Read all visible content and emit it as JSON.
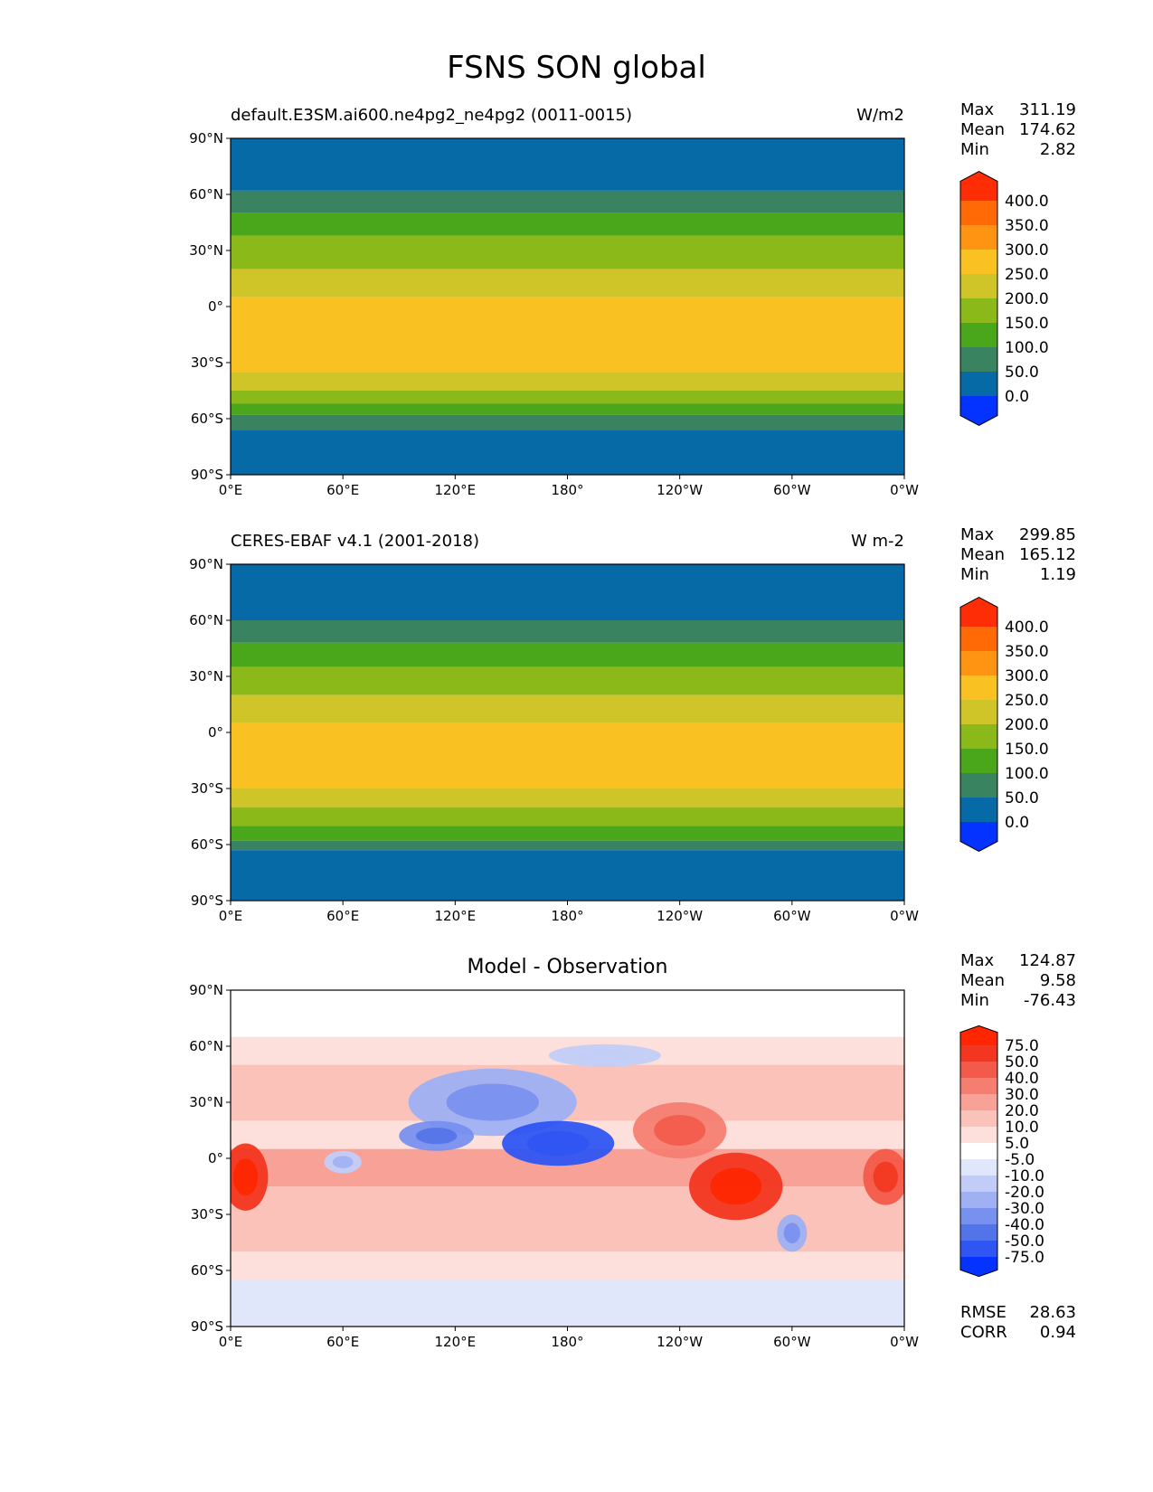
{
  "figure_title": "FSNS SON global",
  "chart_data": [
    {
      "type": "heatmap",
      "name": "test",
      "title_left": "default.E3SM.ai600.ne4pg2_ne4pg2 (0011-0015)",
      "title_right": "W/m2",
      "title_center": "",
      "stats": {
        "max_label": "Max",
        "max": "311.19",
        "mean_label": "Mean",
        "mean": "174.62",
        "min_label": "Min",
        "min": "2.82"
      },
      "xlabel": "",
      "ylabel": "",
      "x_ticks": [
        "0°E",
        "60°E",
        "120°E",
        "180°",
        "120°W",
        "60°W",
        "0°W"
      ],
      "y_ticks": [
        "90°N",
        "60°N",
        "30°N",
        "0°",
        "30°S",
        "60°S",
        "90°S"
      ],
      "xlim": [
        0,
        360
      ],
      "ylim": [
        -90,
        90
      ],
      "colorbar": {
        "levels": [
          "0.0",
          "50.0",
          "100.0",
          "150.0",
          "200.0",
          "250.0",
          "300.0",
          "350.0",
          "400.0"
        ],
        "colors": [
          "#0433ff",
          "#056aa5",
          "#3a8360",
          "#4aa61a",
          "#8cb91a",
          "#cfc428",
          "#f9c222",
          "#ff9412",
          "#ff6a07",
          "#ff2d05"
        ]
      },
      "bands": [
        {
          "lat_from": 90,
          "lat_to": 62,
          "value": 25
        },
        {
          "lat_from": 62,
          "lat_to": 50,
          "value": 75
        },
        {
          "lat_from": 50,
          "lat_to": 38,
          "value": 125
        },
        {
          "lat_from": 38,
          "lat_to": 20,
          "value": 175
        },
        {
          "lat_from": 20,
          "lat_to": 5,
          "value": 225
        },
        {
          "lat_from": 5,
          "lat_to": -35,
          "value": 275
        },
        {
          "lat_from": -35,
          "lat_to": -45,
          "value": 225
        },
        {
          "lat_from": -45,
          "lat_to": -52,
          "value": 175
        },
        {
          "lat_from": -52,
          "lat_to": -58,
          "value": 125
        },
        {
          "lat_from": -58,
          "lat_to": -66,
          "value": 75
        },
        {
          "lat_from": -66,
          "lat_to": -90,
          "value": 25
        }
      ]
    },
    {
      "type": "heatmap",
      "name": "reference",
      "title_left": "CERES-EBAF v4.1 (2001-2018)",
      "title_right": "W m-2",
      "title_center": "",
      "stats": {
        "max_label": "Max",
        "max": "299.85",
        "mean_label": "Mean",
        "mean": "165.12",
        "min_label": "Min",
        "min": "1.19"
      },
      "xlabel": "",
      "ylabel": "",
      "x_ticks": [
        "0°E",
        "60°E",
        "120°E",
        "180°",
        "120°W",
        "60°W",
        "0°W"
      ],
      "y_ticks": [
        "90°N",
        "60°N",
        "30°N",
        "0°",
        "30°S",
        "60°S",
        "90°S"
      ],
      "xlim": [
        0,
        360
      ],
      "ylim": [
        -90,
        90
      ],
      "colorbar": {
        "levels": [
          "0.0",
          "50.0",
          "100.0",
          "150.0",
          "200.0",
          "250.0",
          "300.0",
          "350.0",
          "400.0"
        ],
        "colors": [
          "#0433ff",
          "#056aa5",
          "#3a8360",
          "#4aa61a",
          "#8cb91a",
          "#cfc428",
          "#f9c222",
          "#ff9412",
          "#ff6a07",
          "#ff2d05"
        ]
      },
      "bands": [
        {
          "lat_from": 90,
          "lat_to": 60,
          "value": 25
        },
        {
          "lat_from": 60,
          "lat_to": 48,
          "value": 75
        },
        {
          "lat_from": 48,
          "lat_to": 35,
          "value": 125
        },
        {
          "lat_from": 35,
          "lat_to": 20,
          "value": 175
        },
        {
          "lat_from": 20,
          "lat_to": 5,
          "value": 225
        },
        {
          "lat_from": 5,
          "lat_to": -30,
          "value": 250
        },
        {
          "lat_from": -30,
          "lat_to": -40,
          "value": 225
        },
        {
          "lat_from": -40,
          "lat_to": -50,
          "value": 175
        },
        {
          "lat_from": -50,
          "lat_to": -58,
          "value": 125
        },
        {
          "lat_from": -58,
          "lat_to": -63,
          "value": 75
        },
        {
          "lat_from": -63,
          "lat_to": -90,
          "value": 25
        }
      ]
    },
    {
      "type": "heatmap",
      "name": "difference",
      "title_left": "",
      "title_right": "",
      "title_center": "Model - Observation",
      "stats": {
        "max_label": "Max",
        "max": "124.87",
        "mean_label": "Mean",
        "mean": "9.58",
        "min_label": "Min",
        "min": "-76.43"
      },
      "extra_stats": {
        "rmse_label": "RMSE",
        "rmse": "28.63",
        "corr_label": "CORR",
        "corr": "0.94"
      },
      "xlabel": "",
      "ylabel": "",
      "x_ticks": [
        "0°E",
        "60°E",
        "120°E",
        "180°",
        "120°W",
        "60°W",
        "0°W"
      ],
      "y_ticks": [
        "90°N",
        "60°N",
        "30°N",
        "0°",
        "30°S",
        "60°S",
        "90°S"
      ],
      "xlim": [
        0,
        360
      ],
      "ylim": [
        -90,
        90
      ],
      "colorbar": {
        "levels": [
          "-75.0",
          "-50.0",
          "-40.0",
          "-30.0",
          "-20.0",
          "-10.0",
          "-5.0",
          "5.0",
          "10.0",
          "20.0",
          "30.0",
          "40.0",
          "50.0",
          "75.0"
        ],
        "colors": [
          "#0433ff",
          "#2f55f2",
          "#5373e8",
          "#7890ee",
          "#9fb0f3",
          "#c2cdf7",
          "#e1e7fb",
          "#ffffff",
          "#fde0dc",
          "#fbc2ba",
          "#f8a197",
          "#f67e71",
          "#f45a49",
          "#f3361f",
          "#ff2600"
        ]
      },
      "bands": [
        {
          "lat_from": 90,
          "lat_to": 65,
          "value": 0
        },
        {
          "lat_from": 65,
          "lat_to": 50,
          "value": 7
        },
        {
          "lat_from": 50,
          "lat_to": 20,
          "value": 15
        },
        {
          "lat_from": 20,
          "lat_to": 5,
          "value": 7
        },
        {
          "lat_from": 5,
          "lat_to": -15,
          "value": 25
        },
        {
          "lat_from": -15,
          "lat_to": -50,
          "value": 15
        },
        {
          "lat_from": -50,
          "lat_to": -65,
          "value": 7
        },
        {
          "lat_from": -65,
          "lat_to": -90,
          "value": -7
        }
      ],
      "blobs": [
        {
          "lon": 140,
          "lat": 30,
          "rlon": 45,
          "rlat": 18,
          "value": -25
        },
        {
          "lon": 175,
          "lat": 8,
          "rlon": 30,
          "rlat": 12,
          "value": -55
        },
        {
          "lon": 110,
          "lat": 12,
          "rlon": 20,
          "rlat": 8,
          "value": -35
        },
        {
          "lon": 8,
          "lat": -10,
          "rlon": 12,
          "rlat": 18,
          "value": 60
        },
        {
          "lon": 270,
          "lat": -15,
          "rlon": 25,
          "rlat": 18,
          "value": 60
        },
        {
          "lon": 350,
          "lat": -10,
          "rlon": 12,
          "rlat": 15,
          "value": 45
        },
        {
          "lon": 240,
          "lat": 15,
          "rlon": 25,
          "rlat": 15,
          "value": 35
        },
        {
          "lon": 300,
          "lat": -40,
          "rlon": 8,
          "rlat": 10,
          "value": -30
        },
        {
          "lon": 60,
          "lat": -2,
          "rlon": 10,
          "rlat": 6,
          "value": -20
        },
        {
          "lon": 200,
          "lat": 55,
          "rlon": 30,
          "rlat": 6,
          "value": -15
        }
      ]
    }
  ]
}
